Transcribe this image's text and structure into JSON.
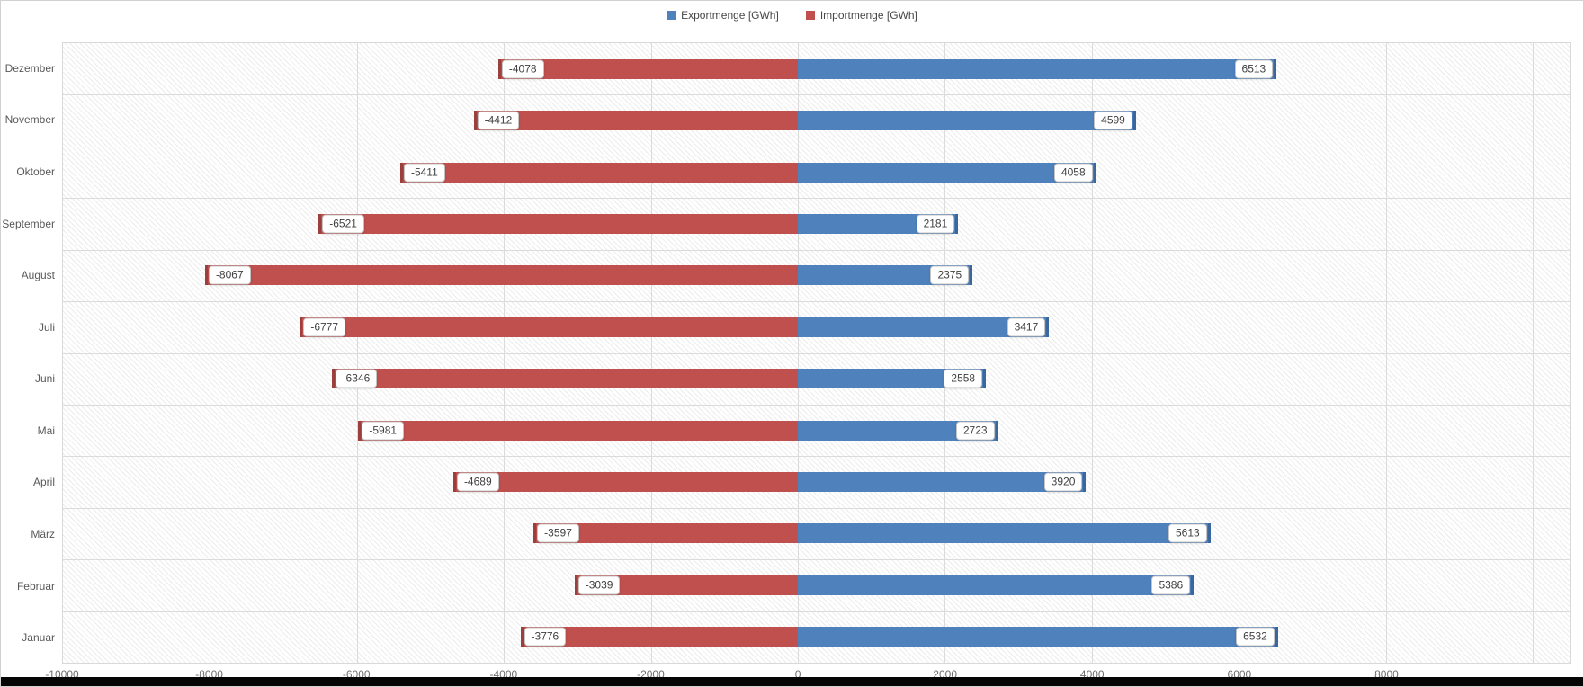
{
  "legend": {
    "items": [
      {
        "label": "Exportmenge [GWh]",
        "color": "#4F81BD"
      },
      {
        "label": "Importmenge [GWh]",
        "color": "#C0504D"
      }
    ]
  },
  "chart_data": {
    "type": "bar",
    "orientation": "horizontal",
    "title": "",
    "xlabel": "",
    "ylabel": "",
    "grid": true,
    "legend_position": "top-center",
    "background": "hatched",
    "categories": [
      "Dezember",
      "November",
      "Oktober",
      "September",
      "August",
      "Juli",
      "Juni",
      "Mai",
      "April",
      "März",
      "Februar",
      "Januar"
    ],
    "series": [
      {
        "name": "Exportmenge [GWh]",
        "color": "#4F81BD",
        "values": [
          6513,
          4599,
          4058,
          2181,
          2375,
          3417,
          2558,
          2723,
          3920,
          5613,
          5386,
          6532
        ]
      },
      {
        "name": "Importmenge [GWh]",
        "color": "#C0504D",
        "values": [
          -4078,
          -4412,
          -5411,
          -6521,
          -8067,
          -6777,
          -6346,
          -5981,
          -4689,
          -3597,
          -3039,
          -3776
        ]
      }
    ],
    "axis": {
      "min": -10000,
      "max": 8000,
      "pos_max": 10500,
      "tick_step": 2000,
      "ticks": [
        -10000,
        -8000,
        -6000,
        -4000,
        -2000,
        0,
        2000,
        4000,
        6000,
        8000
      ],
      "gridlines": [
        -8000,
        -6000,
        -4000,
        -2000,
        0,
        2000,
        4000,
        6000,
        8000,
        10000
      ]
    }
  }
}
